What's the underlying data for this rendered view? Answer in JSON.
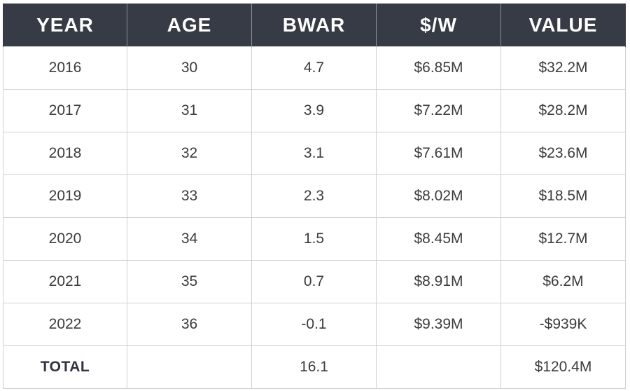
{
  "table": {
    "headers": [
      "YEAR",
      "AGE",
      "BWAR",
      "$/W",
      "VALUE"
    ],
    "rows": [
      [
        "2016",
        "30",
        "4.7",
        "$6.85M",
        "$32.2M"
      ],
      [
        "2017",
        "31",
        "3.9",
        "$7.22M",
        "$28.2M"
      ],
      [
        "2018",
        "32",
        "3.1",
        "$7.61M",
        "$23.6M"
      ],
      [
        "2019",
        "33",
        "2.3",
        "$8.02M",
        "$18.5M"
      ],
      [
        "2020",
        "34",
        "1.5",
        "$8.45M",
        "$12.7M"
      ],
      [
        "2021",
        "35",
        "0.7",
        "$8.91M",
        "$6.2M"
      ],
      [
        "2022",
        "36",
        "-0.1",
        "$9.39M",
        "-$939K"
      ]
    ],
    "total": [
      "TOTAL",
      "",
      "16.1",
      "",
      "$120.4M"
    ]
  },
  "colors": {
    "header_bg": "#363b46",
    "header_text": "#ffffff",
    "grid": "#cfd0d3",
    "cell_text": "#3b3b3b"
  }
}
